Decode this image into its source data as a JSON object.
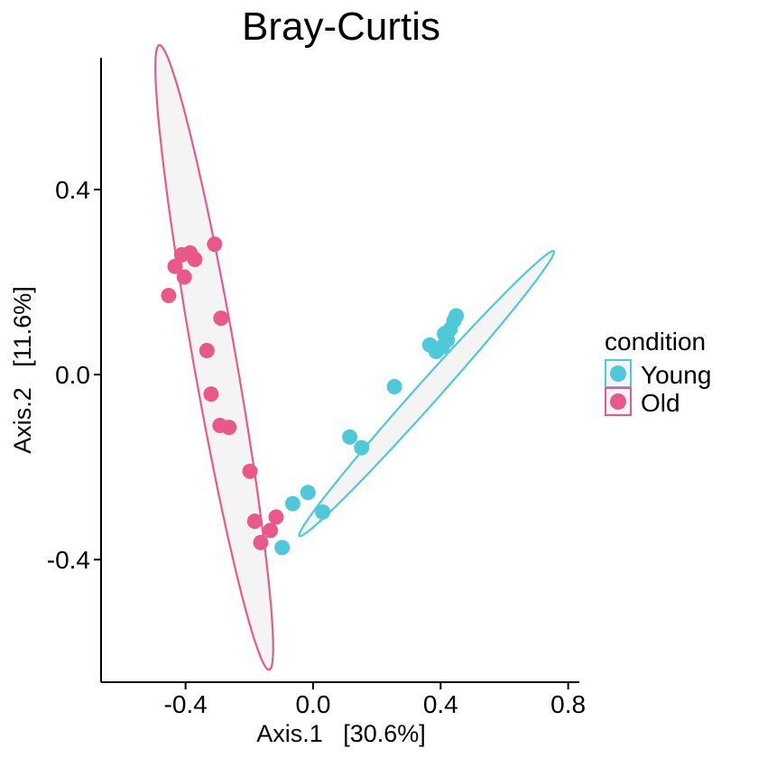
{
  "chart_data": {
    "type": "scatter",
    "title": "Bray-Curtis",
    "xlabel": "Axis.1   [30.6%]",
    "ylabel": "Axis.2   [11.6%]",
    "xlim": [
      -0.665,
      0.835
    ],
    "ylim": [
      -0.665,
      0.685
    ],
    "xticks": [
      -0.4,
      0.0,
      0.4,
      0.8
    ],
    "xtick_labels": [
      "-0.4",
      "0.0",
      "0.4",
      "0.8"
    ],
    "yticks": [
      -0.4,
      0.0,
      0.4
    ],
    "ytick_labels": [
      "-0.4",
      "0.0",
      "0.4"
    ],
    "grid": false,
    "legend": {
      "title": "condition",
      "position": "right",
      "entries": [
        "Young",
        "Old"
      ]
    },
    "series": [
      {
        "name": "Young",
        "color": "#4FC8DA",
        "points": [
          [
            0.449,
            0.127
          ],
          [
            0.442,
            0.117
          ],
          [
            0.43,
            0.098
          ],
          [
            0.412,
            0.088
          ],
          [
            0.421,
            0.075
          ],
          [
            0.405,
            0.06
          ],
          [
            0.366,
            0.064
          ],
          [
            0.386,
            0.05
          ],
          [
            0.255,
            -0.026
          ],
          [
            0.115,
            -0.135
          ],
          [
            0.152,
            -0.158
          ],
          [
            -0.016,
            -0.255
          ],
          [
            -0.064,
            -0.279
          ],
          [
            0.03,
            -0.297
          ],
          [
            -0.097,
            -0.374
          ]
        ],
        "ellipse": {
          "center": [
            0.356,
            -0.041
          ],
          "semi_major": 0.504,
          "semi_minor": 0.029,
          "angle_deg": 37.6
        }
      },
      {
        "name": "Old",
        "color": "#E8598A",
        "points": [
          [
            -0.309,
            0.282
          ],
          [
            -0.386,
            0.263
          ],
          [
            -0.412,
            0.259
          ],
          [
            -0.371,
            0.249
          ],
          [
            -0.433,
            0.234
          ],
          [
            -0.404,
            0.211
          ],
          [
            -0.453,
            0.171
          ],
          [
            -0.289,
            0.122
          ],
          [
            -0.333,
            0.052
          ],
          [
            -0.32,
            -0.042
          ],
          [
            -0.292,
            -0.11
          ],
          [
            -0.264,
            -0.114
          ],
          [
            -0.198,
            -0.209
          ],
          [
            -0.116,
            -0.308
          ],
          [
            -0.183,
            -0.317
          ],
          [
            -0.134,
            -0.337
          ],
          [
            -0.164,
            -0.363
          ]
        ],
        "ellipse": {
          "center": [
            -0.31,
            0.037
          ],
          "semi_major": 0.697,
          "semi_minor": 0.066,
          "angle_deg": -75.6
        }
      }
    ],
    "ellipse_fill": "#F4F4F4"
  }
}
